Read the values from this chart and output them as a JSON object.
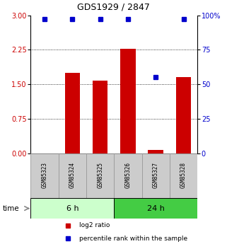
{
  "title": "GDS1929 / 2847",
  "samples": [
    "GSM85323",
    "GSM85324",
    "GSM85325",
    "GSM85326",
    "GSM85327",
    "GSM85328"
  ],
  "log2_ratio": [
    0.0,
    1.75,
    1.58,
    2.28,
    0.07,
    1.65
  ],
  "percentile_rank": [
    97.5,
    97.5,
    97.5,
    97.5,
    55.0,
    97.5
  ],
  "bar_color": "#cc0000",
  "dot_color": "#0000cc",
  "ylim_left": [
    0,
    3
  ],
  "ylim_right": [
    0,
    100
  ],
  "yticks_left": [
    0,
    0.75,
    1.5,
    2.25,
    3
  ],
  "yticks_right": [
    0,
    25,
    50,
    75,
    100
  ],
  "ytick_labels_right": [
    "0",
    "25",
    "50",
    "75",
    "100%"
  ],
  "groups": [
    {
      "label": "6 h",
      "indices": [
        0,
        1,
        2
      ],
      "color": "#ccffcc"
    },
    {
      "label": "24 h",
      "indices": [
        3,
        4,
        5
      ],
      "color": "#44cc44"
    }
  ],
  "legend_items": [
    {
      "label": "log2 ratio",
      "color": "#cc0000"
    },
    {
      "label": "percentile rank within the sample",
      "color": "#0000cc"
    }
  ],
  "sample_box_color": "#cccccc",
  "sample_box_edgecolor": "#999999",
  "bar_width": 0.55,
  "dot_size": 4
}
